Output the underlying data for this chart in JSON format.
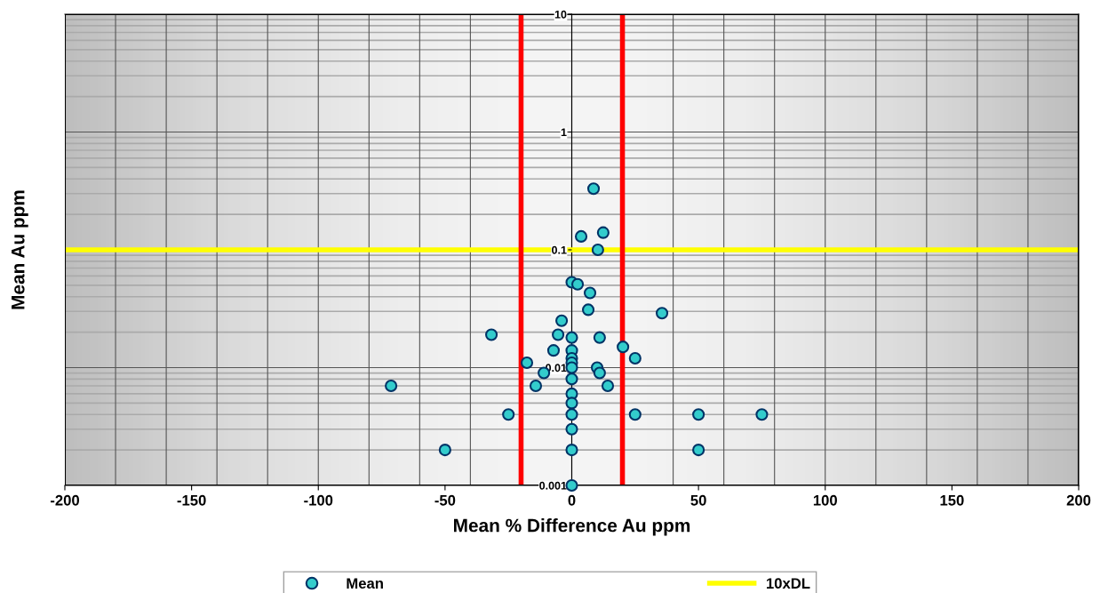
{
  "chart_data": {
    "type": "scatter",
    "xlabel": "Mean % Difference Au ppm",
    "ylabel": "Mean Au ppm",
    "log": "y",
    "xlim": [
      -200,
      200
    ],
    "ylim": [
      0.001,
      10
    ],
    "xticks": [
      -200,
      -150,
      -100,
      -50,
      0,
      50,
      100,
      150,
      200
    ],
    "yticks": [
      0.001,
      0.01,
      0.1,
      1,
      10
    ],
    "grid": true,
    "legend": "bottom",
    "marker": "circle",
    "series": [
      {
        "name": "Mean",
        "color": "#33cccc",
        "x": [
          8.6,
          3.7,
          12.4,
          10.3,
          0,
          2.3,
          7.2,
          6.5,
          35.6,
          -4,
          -31.7,
          -5.4,
          0,
          11,
          20.2,
          -7.2,
          0,
          25,
          0,
          0,
          -17.7,
          0,
          10,
          -11,
          11,
          0,
          -71.3,
          -14.2,
          14.2,
          0,
          0,
          -25,
          0,
          25,
          50,
          75,
          0,
          -50,
          0,
          50,
          0
        ],
        "values": [
          0.33,
          0.13,
          0.14,
          0.1,
          0.053,
          0.051,
          0.043,
          0.031,
          0.029,
          0.025,
          0.019,
          0.019,
          0.018,
          0.018,
          0.015,
          0.014,
          0.014,
          0.012,
          0.012,
          0.011,
          0.011,
          0.01,
          0.01,
          0.009,
          0.009,
          0.008,
          0.007,
          0.007,
          0.007,
          0.006,
          0.005,
          0.004,
          0.004,
          0.004,
          0.004,
          0.004,
          0.003,
          0.002,
          0.002,
          0.002,
          0.001
        ]
      },
      {
        "name": "10xDL",
        "type": "line",
        "color": "#ffff00",
        "marker": "none",
        "line_style": "solid",
        "x": [
          -200,
          200
        ],
        "values": [
          0.1,
          0.1
        ]
      }
    ],
    "ref_lines": [
      {
        "axis": "x",
        "value": -20,
        "label": null,
        "color": "#ff0000"
      },
      {
        "axis": "x",
        "value": 20,
        "label": null,
        "color": "#ff0000"
      }
    ]
  }
}
